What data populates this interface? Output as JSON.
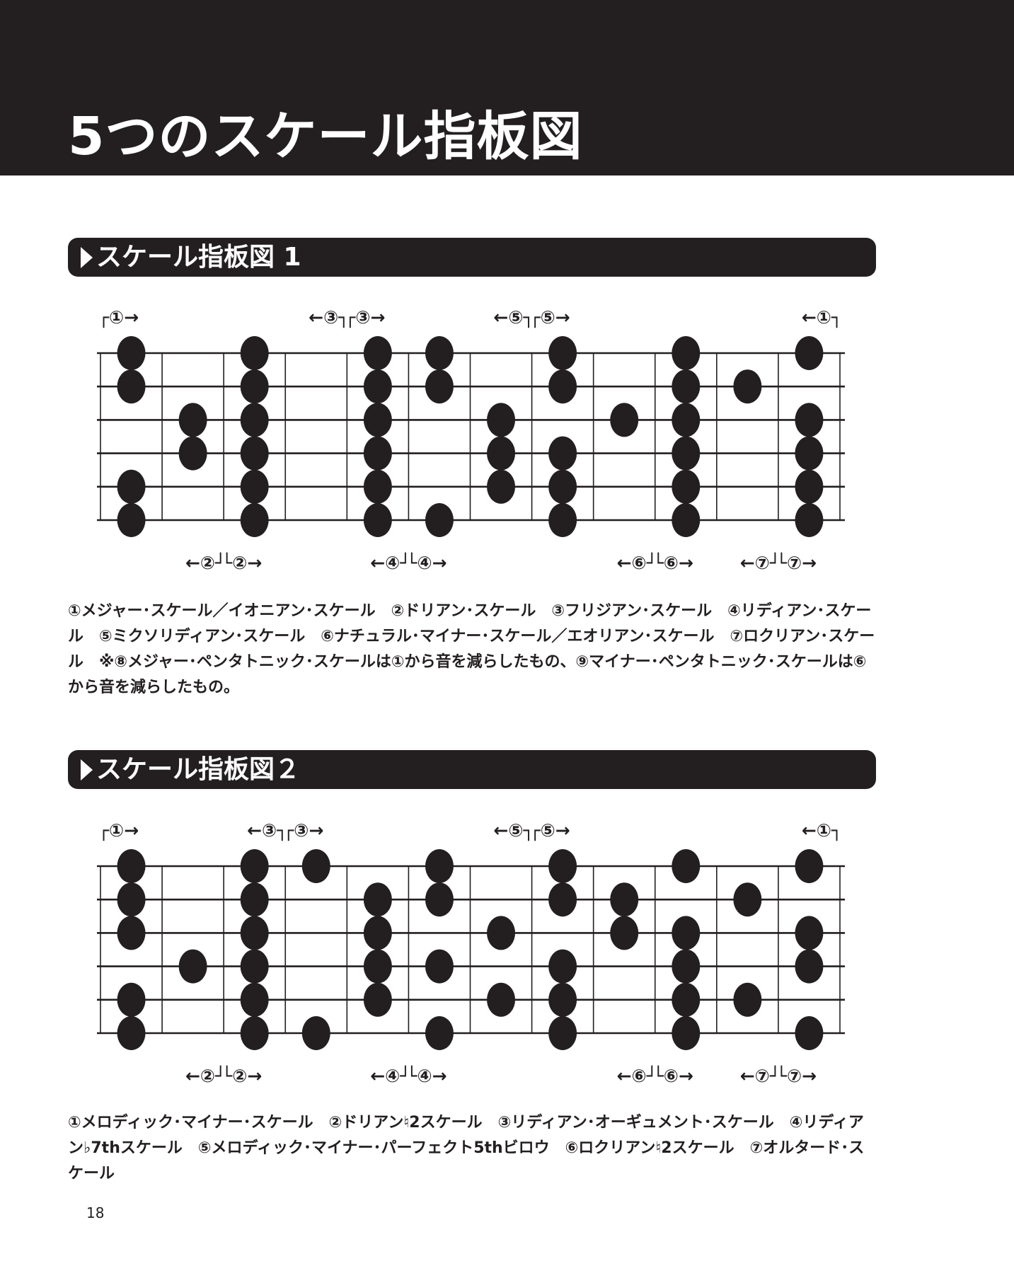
{
  "header": {
    "title": "5つのスケール指板図"
  },
  "sections": [
    {
      "title": "スケール指板図 1",
      "board": {
        "strings": 6,
        "frets": 12,
        "columns": [
          [
            0,
            1,
            4,
            5
          ],
          [
            2,
            3
          ],
          [
            0,
            1,
            2,
            3,
            4,
            5
          ],
          [],
          [
            0,
            1,
            2,
            3,
            4,
            5
          ],
          [
            0,
            1,
            5
          ],
          [
            2,
            3,
            4
          ],
          [
            0,
            1,
            3,
            4,
            5
          ],
          [
            2
          ],
          [
            0,
            1,
            2,
            3,
            4,
            5
          ],
          [
            1
          ],
          [
            0,
            2,
            3,
            4,
            5
          ]
        ],
        "top_labels": [
          {
            "text": "┌①→",
            "col": 0,
            "align": "start"
          },
          {
            "text": "←③┐",
            "col": 3,
            "align": "end"
          },
          {
            "text": "┌③→",
            "col": 4,
            "align": "start"
          },
          {
            "text": "←⑤┐",
            "col": 6,
            "align": "end"
          },
          {
            "text": "┌⑤→",
            "col": 7,
            "align": "start"
          },
          {
            "text": "←①┐",
            "col": 11,
            "align": "end"
          }
        ],
        "bottom_labels": [
          {
            "text": "←②┘",
            "col": 1,
            "align": "end"
          },
          {
            "text": "└②→",
            "col": 2,
            "align": "start"
          },
          {
            "text": "←④┘",
            "col": 4,
            "align": "end"
          },
          {
            "text": "└④→",
            "col": 5,
            "align": "start"
          },
          {
            "text": "←⑥┘",
            "col": 8,
            "align": "end"
          },
          {
            "text": "└⑥→",
            "col": 9,
            "align": "start"
          },
          {
            "text": "←⑦┘",
            "col": 10,
            "align": "end"
          },
          {
            "text": "└⑦→",
            "col": 11,
            "align": "start"
          }
        ]
      },
      "caption": "①メジャー･スケール／イオニアン･スケール　②ドリアン･スケール　③フリジアン･スケール　④リディアン･スケール　⑤ミクソリディアン･スケール　⑥ナチュラル･マイナー･スケール／エオリアン･スケール　⑦ロクリアン･スケール　※⑧メジャー･ペンタトニック･スケールは①から音を減らしたもの、⑨マイナー･ペンタトニック･スケールは⑥から音を減らしたもの。"
    },
    {
      "title": "スケール指板図２",
      "board": {
        "strings": 6,
        "frets": 12,
        "columns": [
          [
            0,
            1,
            2,
            4,
            5
          ],
          [
            3
          ],
          [
            0,
            1,
            2,
            3,
            4,
            5
          ],
          [
            0,
            5
          ],
          [
            1,
            2,
            3,
            4
          ],
          [
            0,
            1,
            3,
            5
          ],
          [
            2,
            4
          ],
          [
            0,
            1,
            3,
            4,
            5
          ],
          [
            1,
            2
          ],
          [
            0,
            2,
            3,
            4,
            5
          ],
          [
            1,
            4
          ],
          [
            0,
            2,
            3,
            5
          ]
        ],
        "top_labels": [
          {
            "text": "┌①→",
            "col": 0,
            "align": "start"
          },
          {
            "text": "←③┐",
            "col": 2,
            "align": "end"
          },
          {
            "text": "┌③→",
            "col": 3,
            "align": "start"
          },
          {
            "text": "←⑤┐",
            "col": 6,
            "align": "end"
          },
          {
            "text": "┌⑤→",
            "col": 7,
            "align": "start"
          },
          {
            "text": "←①┐",
            "col": 11,
            "align": "end"
          }
        ],
        "bottom_labels": [
          {
            "text": "←②┘",
            "col": 1,
            "align": "end"
          },
          {
            "text": "└②→",
            "col": 2,
            "align": "start"
          },
          {
            "text": "←④┘",
            "col": 4,
            "align": "end"
          },
          {
            "text": "└④→",
            "col": 5,
            "align": "start"
          },
          {
            "text": "←⑥┘",
            "col": 8,
            "align": "end"
          },
          {
            "text": "└⑥→",
            "col": 9,
            "align": "start"
          },
          {
            "text": "←⑦┘",
            "col": 10,
            "align": "end"
          },
          {
            "text": "└⑦→",
            "col": 11,
            "align": "start"
          }
        ]
      },
      "caption": "①メロディック･マイナー･スケール　②ドリアン♮2スケール　③リディアン･オーギュメント･スケール　④リディアン♭7thスケール　⑤メロディック･マイナー･パーフェクト5thビロウ　⑥ロクリアン♮2スケール　⑦オルタード･スケール"
    }
  ],
  "page_number": "18",
  "colors": {
    "ink": "#231f20",
    "paper": "#ffffff"
  }
}
